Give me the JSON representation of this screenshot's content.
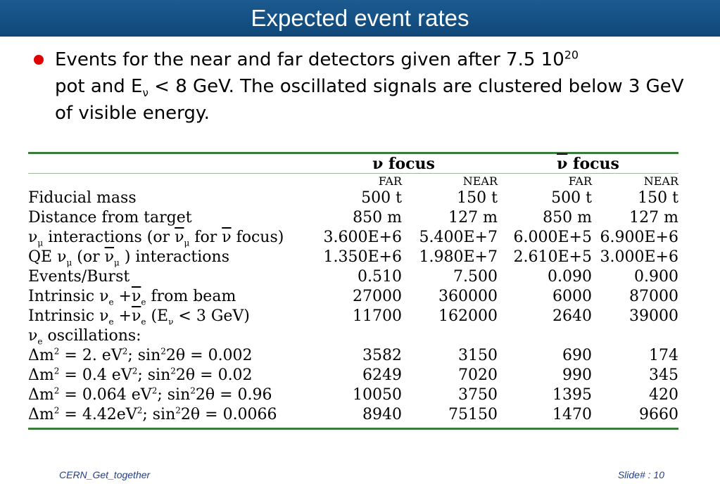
{
  "slide": {
    "title": "Expected event rates",
    "bullet": {
      "part1": "Events for the near and far detectors given after 7.5 10",
      "exp": "20",
      "part2": "pot and E",
      "sub_nu": "ν",
      "part3": " < 8 GeV. The oscillated signals are clustered below 3 GeV of visible energy."
    }
  },
  "table": {
    "group_nu": "ν  focus",
    "group_anti_sym": "ν",
    "group_anti_rest": "  focus",
    "col_far1": "FAR",
    "col_near1": "NEAR",
    "col_far2": "FAR",
    "col_near2": "NEAR",
    "rows": [
      {
        "label": "Fiducial mass",
        "values": [
          "500 t",
          "150 t",
          "500 t",
          "150 t"
        ]
      },
      {
        "label": "Distance from target",
        "values": [
          "850 m",
          "127 m",
          "850 m",
          "127 m"
        ]
      },
      {
        "label": "interactions",
        "values": [
          "3.600E+6",
          "5.400E+7",
          "6.000E+5",
          "6.900E+6"
        ]
      },
      {
        "label": "interactions",
        "values": [
          "1.350E+6",
          "1.980E+7",
          "2.610E+5",
          "3.000E+6"
        ]
      },
      {
        "label": "Events/Burst",
        "values": [
          "0.510",
          "7.500",
          "0.090",
          "0.900"
        ]
      },
      {
        "label": "from beam",
        "values": [
          "27000",
          "360000",
          "6000",
          "87000"
        ]
      },
      {
        "label": "< 3 GeV)",
        "values": [
          "11700",
          "162000",
          "2640",
          "39000"
        ]
      },
      {
        "label": "oscillations:",
        "values": [
          "",
          "",
          "",
          ""
        ]
      },
      {
        "label": "= 2. eV",
        "label2": "; sin",
        "label3": "2θ = 0.002",
        "values": [
          "3582",
          "3150",
          "690",
          "174"
        ]
      },
      {
        "label": "= 0.4 eV",
        "label2": "; sin",
        "label3": "2θ = 0.02",
        "values": [
          "6249",
          "7020",
          "990",
          "345"
        ]
      },
      {
        "label": "= 0.064 eV",
        "label2": "; sin",
        "label3": "2θ = 0.96",
        "values": [
          "10050",
          "3750",
          "1395",
          "420"
        ]
      },
      {
        "label": "= 4.42eV",
        "label2": "; sin",
        "label3": "2θ = 0.0066",
        "values": [
          "8940",
          "75150",
          "1470",
          "9660"
        ]
      }
    ],
    "sym": {
      "nu": "ν",
      "mu": "μ",
      "e": "e",
      "or_open": "(or ",
      "for": "  for ",
      "focus_close": "  focus)",
      "qe": "QE ",
      "close": ")",
      "intrinsic": "Intrinsic ",
      "plus": " +",
      "paren_e": " (E",
      "delta_m": "Δm",
      "two": "2"
    }
  },
  "footer": {
    "left": "CERN_Get_together",
    "right": "Slide#  : 10"
  }
}
